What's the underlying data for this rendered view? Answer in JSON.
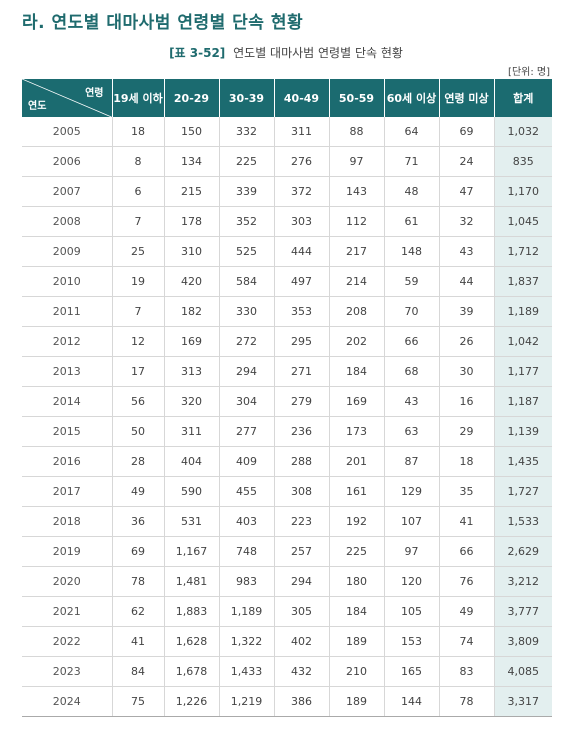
{
  "section_title": "라. 연도별 대마사범 연령별 단속 현황",
  "caption": {
    "tag": "[표 3-52]",
    "text": "연도별 대마사범 연령별 단속 현황"
  },
  "unit": "[단위: 명]",
  "header": {
    "corner_top": "연령",
    "corner_bottom": "연도",
    "columns": [
      "19세 이하",
      "20-29",
      "30-39",
      "40-49",
      "50-59",
      "60세 이상",
      "연령 미상",
      "합계"
    ]
  },
  "rows": [
    [
      "2005",
      "18",
      "150",
      "332",
      "311",
      "88",
      "64",
      "69",
      "1,032"
    ],
    [
      "2006",
      "8",
      "134",
      "225",
      "276",
      "97",
      "71",
      "24",
      "835"
    ],
    [
      "2007",
      "6",
      "215",
      "339",
      "372",
      "143",
      "48",
      "47",
      "1,170"
    ],
    [
      "2008",
      "7",
      "178",
      "352",
      "303",
      "112",
      "61",
      "32",
      "1,045"
    ],
    [
      "2009",
      "25",
      "310",
      "525",
      "444",
      "217",
      "148",
      "43",
      "1,712"
    ],
    [
      "2010",
      "19",
      "420",
      "584",
      "497",
      "214",
      "59",
      "44",
      "1,837"
    ],
    [
      "2011",
      "7",
      "182",
      "330",
      "353",
      "208",
      "70",
      "39",
      "1,189"
    ],
    [
      "2012",
      "12",
      "169",
      "272",
      "295",
      "202",
      "66",
      "26",
      "1,042"
    ],
    [
      "2013",
      "17",
      "313",
      "294",
      "271",
      "184",
      "68",
      "30",
      "1,177"
    ],
    [
      "2014",
      "56",
      "320",
      "304",
      "279",
      "169",
      "43",
      "16",
      "1,187"
    ],
    [
      "2015",
      "50",
      "311",
      "277",
      "236",
      "173",
      "63",
      "29",
      "1,139"
    ],
    [
      "2016",
      "28",
      "404",
      "409",
      "288",
      "201",
      "87",
      "18",
      "1,435"
    ],
    [
      "2017",
      "49",
      "590",
      "455",
      "308",
      "161",
      "129",
      "35",
      "1,727"
    ],
    [
      "2018",
      "36",
      "531",
      "403",
      "223",
      "192",
      "107",
      "41",
      "1,533"
    ],
    [
      "2019",
      "69",
      "1,167",
      "748",
      "257",
      "225",
      "97",
      "66",
      "2,629"
    ],
    [
      "2020",
      "78",
      "1,481",
      "983",
      "294",
      "180",
      "120",
      "76",
      "3,212"
    ],
    [
      "2021",
      "62",
      "1,883",
      "1,189",
      "305",
      "184",
      "105",
      "49",
      "3,777"
    ],
    [
      "2022",
      "41",
      "1,628",
      "1,322",
      "402",
      "189",
      "153",
      "74",
      "3,809"
    ],
    [
      "2023",
      "84",
      "1,678",
      "1,433",
      "432",
      "210",
      "165",
      "83",
      "4,085"
    ],
    [
      "2024",
      "75",
      "1,226",
      "1,219",
      "386",
      "189",
      "144",
      "78",
      "3,317"
    ]
  ],
  "colors": {
    "header_bg": "#1b6b70",
    "title": "#1f6b6e",
    "total_bg": "#e3efef"
  }
}
